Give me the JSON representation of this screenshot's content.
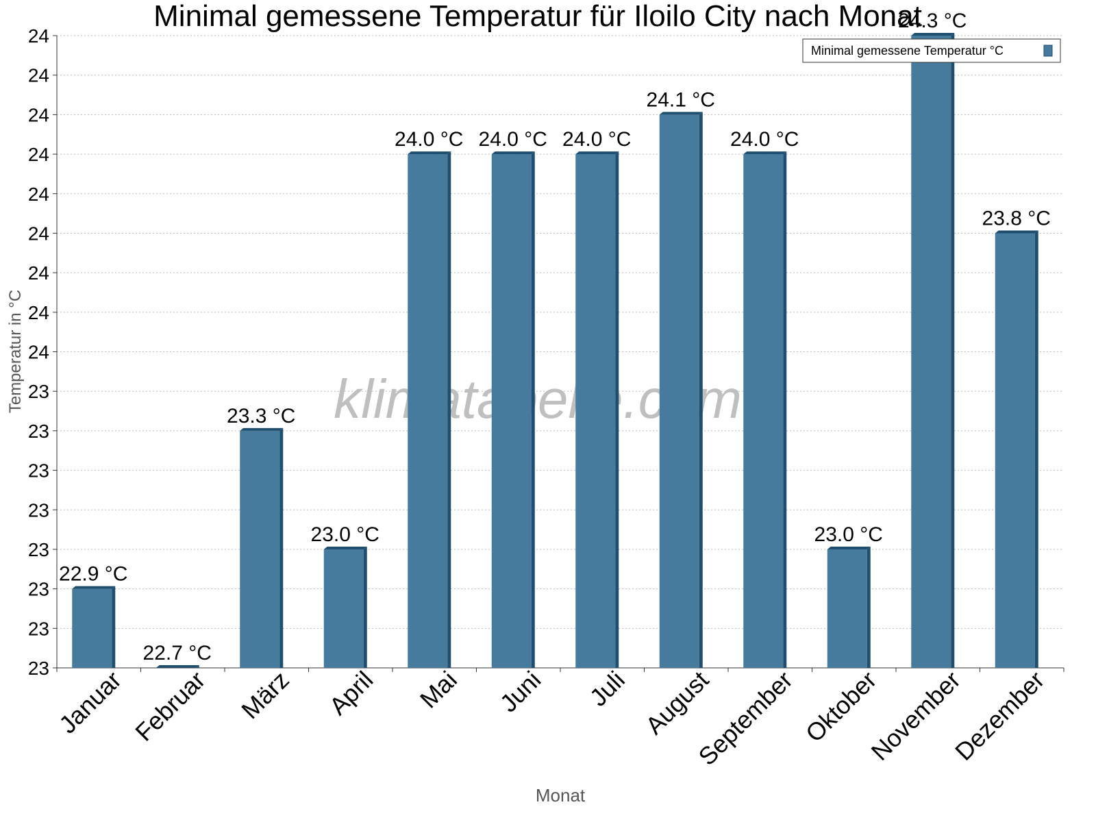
{
  "chart_data": {
    "type": "bar",
    "title": "Minimal gemessene Temperatur für Iloilo City nach Monat",
    "x_label": "Monat",
    "y_label": "Temperatur in °C",
    "watermark": "klimatabelle.com",
    "categories": [
      "Januar",
      "Februar",
      "März",
      "April",
      "Mai",
      "Juni",
      "Juli",
      "August",
      "September",
      "Oktober",
      "November",
      "Dezember"
    ],
    "series": [
      {
        "name": "Minimal gemessene Temperatur °C",
        "color": "#467b9e",
        "values": [
          22.9,
          22.7,
          23.3,
          23.0,
          24.0,
          24.0,
          24.0,
          24.1,
          24.0,
          23.0,
          24.3,
          23.8
        ],
        "value_labels": [
          "22.9 °C",
          "22.7 °C",
          "23.3 °C",
          "23.0 °C",
          "24.0 °C",
          "24.0 °C",
          "24.0 °C",
          "24.1 °C",
          "24.0 °C",
          "23.0 °C",
          "24.3 °C",
          "23.8 °C"
        ]
      }
    ],
    "ylim": [
      22.7,
      24.3
    ],
    "yticks": [
      {
        "value": 22.7,
        "label": "23"
      },
      {
        "value": 22.8,
        "label": "23"
      },
      {
        "value": 22.9,
        "label": "23"
      },
      {
        "value": 23.0,
        "label": "23"
      },
      {
        "value": 23.1,
        "label": "23"
      },
      {
        "value": 23.2,
        "label": "23"
      },
      {
        "value": 23.3,
        "label": "23"
      },
      {
        "value": 23.4,
        "label": "23"
      },
      {
        "value": 23.5,
        "label": "24"
      },
      {
        "value": 23.6,
        "label": "24"
      },
      {
        "value": 23.7,
        "label": "24"
      },
      {
        "value": 23.8,
        "label": "24"
      },
      {
        "value": 23.9,
        "label": "24"
      },
      {
        "value": 24.0,
        "label": "24"
      },
      {
        "value": 24.1,
        "label": "24"
      },
      {
        "value": 24.2,
        "label": "24"
      },
      {
        "value": 24.3,
        "label": "24"
      }
    ],
    "grid": true,
    "legend": "top-right"
  }
}
